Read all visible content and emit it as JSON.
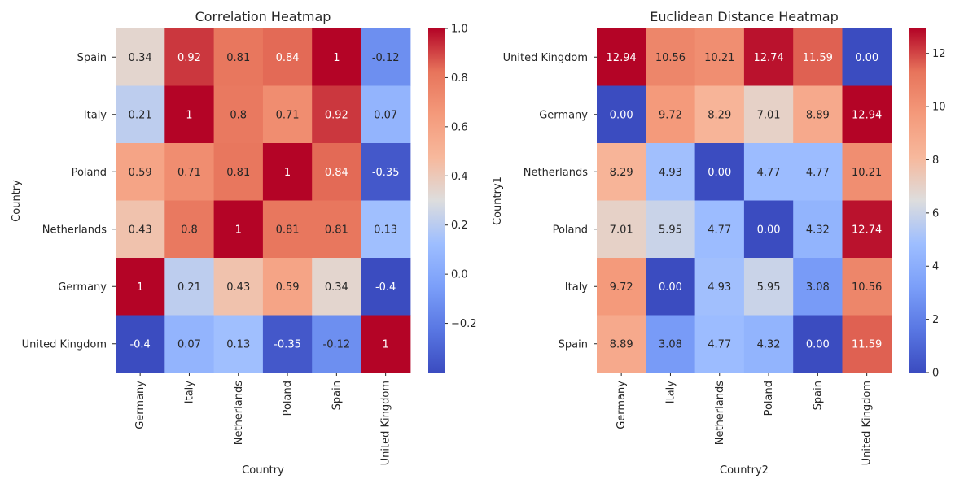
{
  "chart_data": [
    {
      "type": "heatmap",
      "title": "Correlation Heatmap",
      "xlabel": "Country",
      "ylabel": "Country",
      "x_categories": [
        "Germany",
        "Italy",
        "Netherlands",
        "Poland",
        "Spain",
        "United Kingdom"
      ],
      "y_categories": [
        "Spain",
        "Italy",
        "Poland",
        "Netherlands",
        "Germany",
        "United Kingdom"
      ],
      "values": [
        [
          0.34,
          0.92,
          0.81,
          0.84,
          1,
          -0.12
        ],
        [
          0.21,
          1,
          0.8,
          0.71,
          0.92,
          0.07
        ],
        [
          0.59,
          0.71,
          0.81,
          1,
          0.84,
          -0.35
        ],
        [
          0.43,
          0.8,
          1,
          0.81,
          0.81,
          0.13
        ],
        [
          1,
          0.21,
          0.43,
          0.59,
          0.34,
          -0.4
        ],
        [
          -0.4,
          0.07,
          0.13,
          -0.35,
          -0.12,
          1
        ]
      ],
      "cell_labels": [
        [
          "0.34",
          "0.92",
          "0.81",
          "0.84",
          "1",
          "-0.12"
        ],
        [
          "0.21",
          "1",
          "0.8",
          "0.71",
          "0.92",
          "0.07"
        ],
        [
          "0.59",
          "0.71",
          "0.81",
          "1",
          "0.84",
          "-0.35"
        ],
        [
          "0.43",
          "0.8",
          "1",
          "0.81",
          "0.81",
          "0.13"
        ],
        [
          "1",
          "0.21",
          "0.43",
          "0.59",
          "0.34",
          "-0.4"
        ],
        [
          "-0.4",
          "0.07",
          "0.13",
          "-0.35",
          "-0.12",
          "1"
        ]
      ],
      "colormap": "coolwarm",
      "vmin": -0.4,
      "vmax": 1.0,
      "colorbar_ticks": [
        -0.2,
        0.0,
        0.2,
        0.4,
        0.6,
        0.8,
        1.0
      ],
      "colorbar_tick_labels": [
        "−0.2",
        "0.0",
        "0.2",
        "0.4",
        "0.6",
        "0.8",
        "1.0"
      ],
      "grid": false
    },
    {
      "type": "heatmap",
      "title": "Euclidean Distance Heatmap",
      "xlabel": "Country2",
      "ylabel": "Country1",
      "x_categories": [
        "Germany",
        "Italy",
        "Netherlands",
        "Poland",
        "Spain",
        "United Kingdom"
      ],
      "y_categories": [
        "United Kingdom",
        "Germany",
        "Netherlands",
        "Poland",
        "Italy",
        "Spain"
      ],
      "values": [
        [
          12.94,
          10.56,
          10.21,
          12.74,
          11.59,
          0.0
        ],
        [
          0.0,
          9.72,
          8.29,
          7.01,
          8.89,
          12.94
        ],
        [
          8.29,
          4.93,
          0.0,
          4.77,
          4.77,
          10.21
        ],
        [
          7.01,
          5.95,
          4.77,
          0.0,
          4.32,
          12.74
        ],
        [
          9.72,
          0.0,
          4.93,
          5.95,
          3.08,
          10.56
        ],
        [
          8.89,
          3.08,
          4.77,
          4.32,
          0.0,
          11.59
        ]
      ],
      "cell_labels": [
        [
          "12.94",
          "10.56",
          "10.21",
          "12.74",
          "11.59",
          "0.00"
        ],
        [
          "0.00",
          "9.72",
          "8.29",
          "7.01",
          "8.89",
          "12.94"
        ],
        [
          "8.29",
          "4.93",
          "0.00",
          "4.77",
          "4.77",
          "10.21"
        ],
        [
          "7.01",
          "5.95",
          "4.77",
          "0.00",
          "4.32",
          "12.74"
        ],
        [
          "9.72",
          "0.00",
          "4.93",
          "5.95",
          "3.08",
          "10.56"
        ],
        [
          "8.89",
          "3.08",
          "4.77",
          "4.32",
          "0.00",
          "11.59"
        ]
      ],
      "colormap": "coolwarm",
      "vmin": 0,
      "vmax": 12.94,
      "colorbar_ticks": [
        0,
        2,
        4,
        6,
        8,
        10,
        12
      ],
      "colorbar_tick_labels": [
        "0",
        "2",
        "4",
        "6",
        "8",
        "10",
        "12"
      ],
      "grid": false
    }
  ]
}
